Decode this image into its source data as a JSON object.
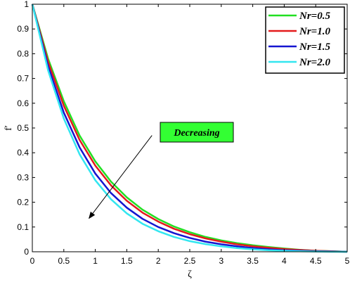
{
  "chart_data": {
    "type": "line",
    "xlabel": "ζ",
    "ylabel": "f′",
    "xlim": [
      0,
      5
    ],
    "ylim": [
      0,
      1
    ],
    "xticks": [
      "0",
      "0.5",
      "1",
      "1.5",
      "2",
      "2.5",
      "3",
      "3.5",
      "4",
      "4.5",
      "5"
    ],
    "yticks": [
      "0",
      "0.1",
      "0.2",
      "0.3",
      "0.4",
      "0.5",
      "0.6",
      "0.7",
      "0.8",
      "0.9",
      "1"
    ],
    "grid": false,
    "legend_position": "top-right",
    "x": [
      0,
      0.25,
      0.5,
      0.75,
      1.0,
      1.25,
      1.5,
      1.75,
      2.0,
      2.25,
      2.5,
      2.75,
      3.0,
      3.25,
      3.5,
      3.75,
      4.0,
      4.25,
      4.5,
      4.75,
      5.0
    ],
    "series": [
      {
        "name": "Nr=0.5",
        "color": "#22e022",
        "values": [
          1.0,
          0.78,
          0.608,
          0.47,
          0.365,
          0.283,
          0.22,
          0.17,
          0.132,
          0.102,
          0.079,
          0.06,
          0.046,
          0.035,
          0.026,
          0.019,
          0.013,
          0.008,
          0.004,
          0.002,
          0.0
        ]
      },
      {
        "name": "Nr=1.0",
        "color": "#e41a1c",
        "values": [
          1.0,
          0.768,
          0.59,
          0.452,
          0.348,
          0.268,
          0.206,
          0.158,
          0.122,
          0.093,
          0.071,
          0.054,
          0.041,
          0.03,
          0.022,
          0.016,
          0.011,
          0.007,
          0.004,
          0.002,
          0.0
        ]
      },
      {
        "name": "Nr=1.5",
        "color": "#1515d0",
        "values": [
          1.0,
          0.75,
          0.562,
          0.422,
          0.316,
          0.237,
          0.178,
          0.133,
          0.1,
          0.075,
          0.056,
          0.041,
          0.03,
          0.022,
          0.015,
          0.01,
          0.006,
          0.004,
          0.002,
          0.001,
          0.0
        ]
      },
      {
        "name": "Nr=2.0",
        "color": "#33e6f0",
        "values": [
          1.0,
          0.733,
          0.538,
          0.394,
          0.289,
          0.212,
          0.155,
          0.113,
          0.083,
          0.06,
          0.043,
          0.031,
          0.022,
          0.015,
          0.01,
          0.006,
          0.004,
          0.002,
          0.001,
          0.0,
          0.0
        ]
      }
    ],
    "annotation": {
      "text": "Decreasing",
      "box_color": "#33ff33",
      "arrow_from": [
        1.9,
        0.47
      ],
      "arrow_to": [
        0.9,
        0.135
      ]
    }
  }
}
